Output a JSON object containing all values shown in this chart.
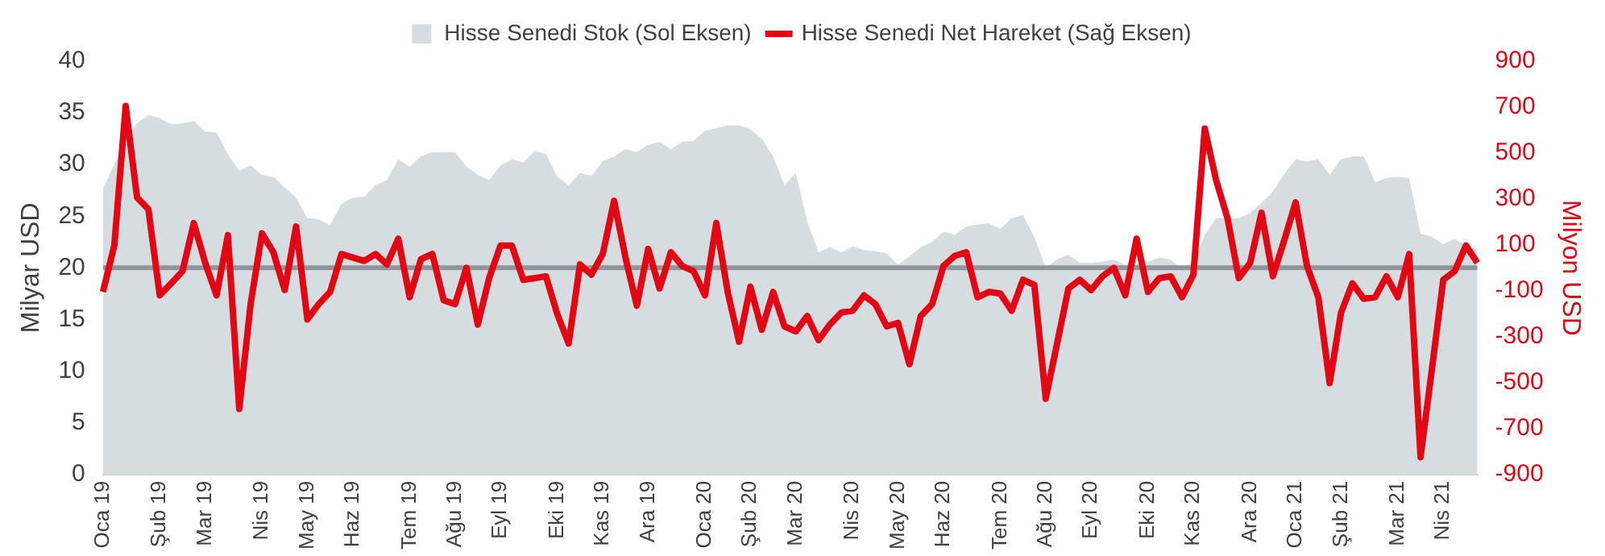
{
  "chart_data": {
    "type": "area",
    "categories": [
      "Oca 19",
      null,
      null,
      null,
      null,
      "Şub 19",
      null,
      null,
      null,
      "Mar 19",
      null,
      null,
      null,
      null,
      "Nis 19",
      null,
      null,
      null,
      "May 19",
      null,
      null,
      null,
      "Haz 19",
      null,
      null,
      null,
      null,
      "Tem 19",
      null,
      null,
      null,
      "Ağu 19",
      null,
      null,
      null,
      "Eyl 19",
      null,
      null,
      null,
      null,
      "Eki 19",
      null,
      null,
      null,
      "Kas 19",
      null,
      null,
      null,
      "Ara 19",
      null,
      null,
      null,
      null,
      "Oca 20",
      null,
      null,
      null,
      "Şub 20",
      null,
      null,
      null,
      "Mar 20",
      null,
      null,
      null,
      null,
      "Nis 20",
      null,
      null,
      null,
      "May 20",
      null,
      null,
      null,
      "Haz 20",
      null,
      null,
      null,
      null,
      "Tem 20",
      null,
      null,
      null,
      "Ağu 20",
      null,
      null,
      null,
      "Eyl 20",
      null,
      null,
      null,
      null,
      "Eki 20",
      null,
      null,
      null,
      "Kas 20",
      null,
      null,
      null,
      null,
      "Ara 20",
      null,
      null,
      null,
      "Oca 21",
      null,
      null,
      null,
      "Şub 21",
      null,
      null,
      null,
      null,
      "Mar 21",
      null,
      null,
      null,
      "Nis 21",
      null,
      null,
      null
    ],
    "series": [
      {
        "name": "Hisse Senedi Stok (Sol Eksen)",
        "color": "#d5dde1",
        "values": [
          27.7,
          30,
          32.5,
          34,
          34.8,
          34.5,
          33.9,
          34,
          34.2,
          33.2,
          33.1,
          31,
          29.4,
          29.9,
          29,
          28.8,
          27.8,
          26.8,
          24.8,
          24.7,
          24.1,
          26.2,
          26.8,
          26.9,
          28,
          28.5,
          30.5,
          29.8,
          30.8,
          31.2,
          31.2,
          31.2,
          29.8,
          29,
          28.5,
          29.9,
          30.5,
          30.2,
          31.3,
          31,
          28.8,
          28,
          29.2,
          28.9,
          30.3,
          30.8,
          31.5,
          31.2,
          31.9,
          32.2,
          31.5,
          32.2,
          32.3,
          33.3,
          33.5,
          33.8,
          33.8,
          33.4,
          32.5,
          30.8,
          28,
          29.2,
          24.5,
          21.5,
          22,
          21.5,
          22.1,
          21.7,
          21.6,
          21.4,
          20.3,
          21.1,
          22,
          22.5,
          23.5,
          23.2,
          24,
          24.2,
          24.3,
          23.8,
          24.8,
          25.1,
          23,
          20,
          20.8,
          21.3,
          20.5,
          20.5,
          20.6,
          20.8,
          20.3,
          20.4,
          20.6,
          21,
          20.8,
          19.8,
          20.5,
          23.2,
          24.8,
          24.8,
          24.8,
          25.3,
          26.3,
          27.4,
          29.1,
          30.5,
          30.3,
          30.5,
          29,
          30.5,
          30.8,
          30.8,
          28.3,
          28.7,
          28.8,
          28.7,
          23.3,
          23,
          22.3,
          22.8,
          22.2,
          21.8
        ]
      },
      {
        "name": "Hisse Senedi Net Hareket (Sağ Eksen)",
        "type": "line",
        "axis": "y2",
        "color": "#e30613",
        "values": [
          -105,
          97,
          705,
          307,
          255,
          -120,
          -68,
          -15,
          195,
          22,
          -120,
          142,
          -615,
          -158,
          150,
          68,
          -97,
          180,
          -225,
          -158,
          -105,
          60,
          45,
          30,
          60,
          15,
          127,
          -128,
          38,
          60,
          -142,
          -158,
          0,
          -247,
          -45,
          97,
          97,
          -52,
          -45,
          -37,
          -202,
          -330,
          15,
          -30,
          60,
          292,
          45,
          -165,
          82,
          -90,
          68,
          8,
          -15,
          -120,
          195,
          -105,
          -322,
          -82,
          -270,
          -105,
          -255,
          -277,
          -210,
          -315,
          -247,
          -195,
          -187,
          -120,
          -158,
          -255,
          -240,
          -420,
          -210,
          -158,
          8,
          52,
          68,
          -128,
          -105,
          -112,
          -187,
          -52,
          -75,
          -570,
          -330,
          -90,
          -52,
          -97,
          -37,
          0,
          -120,
          127,
          -105,
          -45,
          -37,
          -128,
          -30,
          607,
          382,
          217,
          -45,
          22,
          240,
          -37,
          120,
          285,
          8,
          -128,
          -502,
          -195,
          -68,
          -135,
          -128,
          -37,
          -128,
          60,
          -825,
          -442,
          -52,
          -15,
          97,
          22
        ]
      }
    ],
    "ylabel": "Milyar USD",
    "y2label": "Milyon USD",
    "ylim": [
      0,
      40
    ],
    "yticks": [
      0,
      5,
      10,
      15,
      20,
      25,
      30,
      35,
      40
    ],
    "y2lim": [
      -900,
      900
    ],
    "y2ticks": [
      -900,
      -700,
      -500,
      -300,
      -100,
      100,
      300,
      500,
      700,
      900
    ],
    "ref_lines": [
      {
        "axis": "y2",
        "value": 0,
        "color": "#8e959b"
      }
    ],
    "legend": "top",
    "grid": false,
    "marker": "none",
    "line_style": "solid"
  }
}
